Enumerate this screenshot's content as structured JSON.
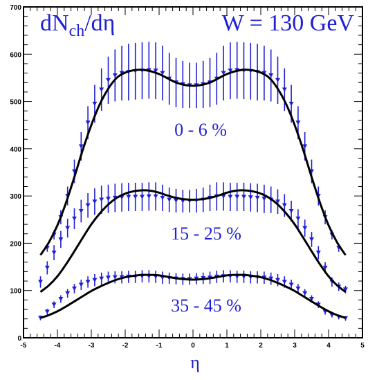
{
  "chart_data": {
    "type": "line",
    "title_parts": {
      "main": "dN",
      "sub": "ch",
      "rest": "/dη"
    },
    "energy_label": "W = 130 GeV",
    "xlabel": "η",
    "ylabel": "",
    "xlim": [
      -5,
      5
    ],
    "ylim": [
      0,
      700
    ],
    "xticks": [
      "-5",
      "-4",
      "-3",
      "-2",
      "-1",
      "0",
      "1",
      "2",
      "3",
      "4",
      "5"
    ],
    "yticks": [
      "0",
      "100",
      "200",
      "300",
      "400",
      "500",
      "600",
      "700"
    ],
    "grid": false,
    "colors": {
      "data": "#1f1fd6",
      "curve": "#000000",
      "frame": "#000000"
    },
    "series": [
      {
        "name": "0 - 6 %",
        "curve": {
          "x": [
            -4.5,
            -4.25,
            -4,
            -3.75,
            -3.5,
            -3.25,
            -3,
            -2.75,
            -2.5,
            -2.25,
            -2,
            -1.75,
            -1.5,
            -1.25,
            -1,
            -0.75,
            -0.5,
            -0.25,
            0,
            0.25,
            0.5,
            0.75,
            1,
            1.25,
            1.5,
            1.75,
            2,
            2.25,
            2.5,
            2.75,
            3,
            3.25,
            3.5,
            3.75,
            4,
            4.25,
            4.5
          ],
          "y": [
            175,
            202,
            238,
            285,
            340,
            398,
            450,
            494,
            527,
            550,
            561,
            566,
            567,
            564,
            558,
            549,
            540,
            535,
            533,
            535,
            540,
            549,
            558,
            564,
            567,
            566,
            561,
            550,
            527,
            494,
            450,
            398,
            340,
            285,
            238,
            202,
            175
          ]
        },
        "points": {
          "x": [
            -4.3,
            -4.1,
            -3.9,
            -3.7,
            -3.5,
            -3.3,
            -3.1,
            -2.9,
            -2.7,
            -2.5,
            -2.3,
            -2.1,
            -1.9,
            -1.7,
            -1.5,
            -1.3,
            -1.1,
            -0.9,
            -0.7,
            -0.5,
            -0.3,
            -0.1,
            0.1,
            0.3,
            0.5,
            0.7,
            0.9,
            1.1,
            1.3,
            1.5,
            1.7,
            1.9,
            2.1,
            2.3,
            2.5,
            2.7,
            2.9,
            3.1,
            3.3,
            3.5,
            3.7,
            3.9,
            4.1,
            4.3
          ],
          "y": [
            190,
            218,
            255,
            300,
            352,
            405,
            455,
            495,
            525,
            545,
            555,
            560,
            562,
            564,
            565,
            566,
            565,
            560,
            548,
            540,
            536,
            534,
            534,
            536,
            540,
            548,
            560,
            565,
            566,
            565,
            564,
            562,
            560,
            555,
            545,
            525,
            495,
            455,
            405,
            352,
            300,
            255,
            218,
            190
          ],
          "err": [
            8,
            10,
            15,
            20,
            25,
            30,
            35,
            40,
            45,
            50,
            55,
            58,
            60,
            60,
            60,
            60,
            60,
            58,
            55,
            52,
            50,
            48,
            48,
            50,
            52,
            55,
            58,
            60,
            60,
            60,
            60,
            60,
            58,
            55,
            50,
            45,
            40,
            35,
            30,
            25,
            20,
            15,
            10,
            8
          ]
        }
      },
      {
        "name": "15 - 25 %",
        "curve": {
          "x": [
            -4.5,
            -4.25,
            -4,
            -3.75,
            -3.5,
            -3.25,
            -3,
            -2.75,
            -2.5,
            -2.25,
            -2,
            -1.75,
            -1.5,
            -1.25,
            -1,
            -0.75,
            -0.5,
            -0.25,
            0,
            0.25,
            0.5,
            0.75,
            1,
            1.25,
            1.5,
            1.75,
            2,
            2.25,
            2.5,
            2.75,
            3,
            3.25,
            3.5,
            3.75,
            4,
            4.25,
            4.5
          ],
          "y": [
            97,
            111,
            130,
            155,
            183,
            212,
            240,
            263,
            282,
            296,
            305,
            310,
            312,
            311,
            307,
            301,
            296,
            293,
            292,
            293,
            296,
            301,
            307,
            311,
            312,
            310,
            305,
            296,
            282,
            263,
            240,
            212,
            183,
            155,
            130,
            111,
            97
          ]
        },
        "points": {
          "x": [
            -4.5,
            -4.3,
            -4.1,
            -3.9,
            -3.7,
            -3.5,
            -3.3,
            -3.1,
            -2.9,
            -2.7,
            -2.5,
            -2.3,
            -2.1,
            -1.9,
            -1.7,
            -1.5,
            -1.3,
            -1.1,
            -0.9,
            -0.7,
            -0.5,
            -0.3,
            -0.1,
            0.1,
            0.3,
            0.5,
            0.7,
            0.9,
            1.1,
            1.3,
            1.5,
            1.7,
            1.9,
            2.1,
            2.3,
            2.5,
            2.7,
            2.9,
            3.1,
            3.3,
            3.5,
            3.7,
            3.9,
            4.1,
            4.3,
            4.5
          ],
          "y": [
            118,
            148,
            180,
            208,
            232,
            252,
            268,
            280,
            288,
            292,
            294,
            296,
            297,
            298,
            298,
            298,
            299,
            299,
            296,
            292,
            290,
            289,
            289,
            290,
            292,
            296,
            299,
            299,
            298,
            298,
            298,
            297,
            296,
            294,
            292,
            288,
            280,
            268,
            252,
            232,
            208,
            180,
            148,
            118,
            108,
            102
          ],
          "err": [
            12,
            14,
            16,
            18,
            20,
            22,
            24,
            26,
            28,
            30,
            30,
            30,
            30,
            30,
            30,
            30,
            30,
            30,
            28,
            26,
            25,
            24,
            24,
            25,
            26,
            28,
            30,
            30,
            30,
            30,
            30,
            30,
            30,
            30,
            28,
            26,
            24,
            22,
            20,
            18,
            16,
            14,
            12,
            10,
            9,
            8
          ]
        }
      },
      {
        "name": "35 - 45 %",
        "curve": {
          "x": [
            -4.5,
            -4.25,
            -4,
            -3.75,
            -3.5,
            -3.25,
            -3,
            -2.75,
            -2.5,
            -2.25,
            -2,
            -1.75,
            -1.5,
            -1.25,
            -1,
            -0.75,
            -0.5,
            -0.25,
            0,
            0.25,
            0.5,
            0.75,
            1,
            1.25,
            1.5,
            1.75,
            2,
            2.25,
            2.5,
            2.75,
            3,
            3.25,
            3.5,
            3.75,
            4,
            4.25,
            4.5
          ],
          "y": [
            42,
            48,
            56,
            66,
            77,
            88,
            99,
            108,
            116,
            123,
            128,
            131,
            133,
            133,
            132,
            129,
            126,
            124,
            123,
            124,
            126,
            129,
            132,
            133,
            133,
            131,
            128,
            123,
            116,
            108,
            99,
            88,
            77,
            66,
            56,
            48,
            42
          ]
        },
        "points": {
          "x": [
            -4.5,
            -4.3,
            -4.1,
            -3.9,
            -3.7,
            -3.5,
            -3.3,
            -3.1,
            -2.9,
            -2.7,
            -2.5,
            -2.3,
            -2.1,
            -1.9,
            -1.7,
            -1.5,
            -1.3,
            -1.1,
            -0.9,
            -0.7,
            -0.5,
            -0.3,
            -0.1,
            0.1,
            0.3,
            0.5,
            0.7,
            0.9,
            1.1,
            1.3,
            1.5,
            1.7,
            1.9,
            2.1,
            2.3,
            2.5,
            2.7,
            2.9,
            3.1,
            3.3,
            3.5,
            3.7,
            3.9,
            4.1,
            4.3,
            4.5
          ],
          "y": [
            42,
            55,
            70,
            82,
            94,
            104,
            112,
            118,
            122,
            125,
            127,
            128,
            128,
            129,
            129,
            130,
            130,
            129,
            127,
            126,
            125,
            124,
            124,
            125,
            126,
            127,
            129,
            130,
            130,
            129,
            129,
            128,
            128,
            127,
            125,
            122,
            118,
            112,
            104,
            94,
            82,
            70,
            55,
            48,
            44,
            41
          ],
          "err": [
            5,
            6,
            7,
            8,
            9,
            10,
            11,
            12,
            13,
            13,
            13,
            13,
            13,
            13,
            13,
            13,
            13,
            13,
            13,
            12,
            12,
            12,
            12,
            12,
            12,
            13,
            13,
            13,
            13,
            13,
            13,
            13,
            13,
            13,
            13,
            13,
            12,
            11,
            10,
            9,
            8,
            7,
            6,
            5,
            5,
            5
          ]
        }
      }
    ],
    "annotations": [
      "0 - 6 %",
      "15 - 25 %",
      "35 - 45 %"
    ]
  }
}
